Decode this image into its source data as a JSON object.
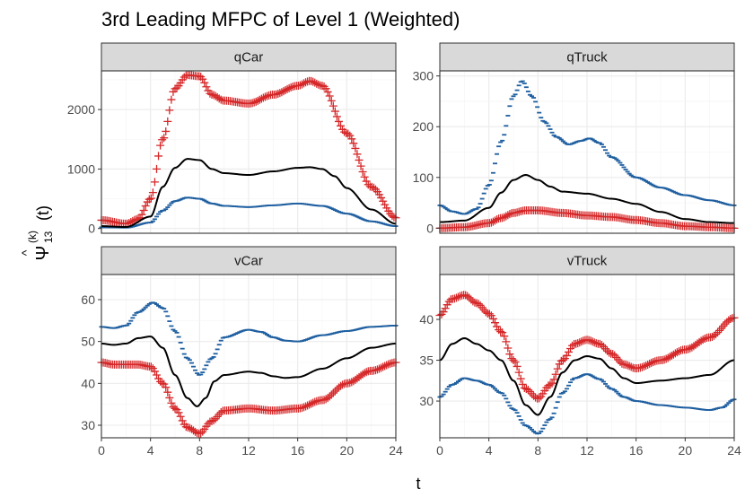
{
  "chart_data": {
    "type": "line",
    "title": "3rd Leading MFPC of Level 1 (Weighted)",
    "xlabel": "t",
    "ylabel": "Ψ̂_13^(k) (t)",
    "ylabel_parts": {
      "hat": "^",
      "psi": "Ψ",
      "sub": "13",
      "sup": "(k)",
      "arg": "(t)"
    },
    "xlim": [
      0,
      24
    ],
    "x_ticks": [
      "0",
      "4",
      "8",
      "12",
      "16",
      "20",
      "24"
    ],
    "series_styles": {
      "mean": {
        "color": "#000000",
        "marker": "line"
      },
      "plus": {
        "color": "#d62728",
        "marker": "+"
      },
      "minus": {
        "color": "#1f5fa0",
        "marker": "-"
      }
    },
    "panels": [
      {
        "name": "qCar",
        "ylim": [
          -80,
          2650
        ],
        "y_ticks": [
          0,
          1000,
          2000
        ],
        "y_tick_labels": [
          "0",
          "1000",
          "2000"
        ],
        "mean": [
          [
            0,
            40
          ],
          [
            2,
            25
          ],
          [
            4,
            200
          ],
          [
            5,
            700
          ],
          [
            6,
            1020
          ],
          [
            7,
            1170
          ],
          [
            8,
            1150
          ],
          [
            9,
            1000
          ],
          [
            10,
            930
          ],
          [
            12,
            900
          ],
          [
            14,
            960
          ],
          [
            16,
            1020
          ],
          [
            17,
            1030
          ],
          [
            18,
            1000
          ],
          [
            19,
            880
          ],
          [
            20,
            680
          ],
          [
            22,
            320
          ],
          [
            24,
            80
          ]
        ],
        "plus": [
          [
            0,
            140
          ],
          [
            2,
            80
          ],
          [
            3,
            160
          ],
          [
            4,
            500
          ],
          [
            5,
            1500
          ],
          [
            6,
            2350
          ],
          [
            7,
            2580
          ],
          [
            8,
            2560
          ],
          [
            9,
            2250
          ],
          [
            10,
            2150
          ],
          [
            12,
            2100
          ],
          [
            14,
            2250
          ],
          [
            16,
            2400
          ],
          [
            17,
            2480
          ],
          [
            18,
            2400
          ],
          [
            20,
            1600
          ],
          [
            22,
            700
          ],
          [
            24,
            180
          ]
        ],
        "minus": [
          [
            0,
            20
          ],
          [
            2,
            15
          ],
          [
            4,
            100
          ],
          [
            5,
            300
          ],
          [
            6,
            460
          ],
          [
            7,
            520
          ],
          [
            8,
            500
          ],
          [
            9,
            420
          ],
          [
            10,
            380
          ],
          [
            12,
            360
          ],
          [
            14,
            390
          ],
          [
            16,
            420
          ],
          [
            18,
            380
          ],
          [
            20,
            250
          ],
          [
            22,
            120
          ],
          [
            24,
            40
          ]
        ]
      },
      {
        "name": "qTruck",
        "ylim": [
          -10,
          310
        ],
        "y_ticks": [
          0,
          100,
          200,
          300
        ],
        "y_tick_labels": [
          "0",
          "100",
          "200",
          "300"
        ],
        "mean": [
          [
            0,
            12
          ],
          [
            2,
            15
          ],
          [
            4,
            40
          ],
          [
            5,
            70
          ],
          [
            6,
            95
          ],
          [
            7,
            105
          ],
          [
            8,
            95
          ],
          [
            9,
            82
          ],
          [
            10,
            72
          ],
          [
            12,
            68
          ],
          [
            14,
            58
          ],
          [
            16,
            48
          ],
          [
            18,
            32
          ],
          [
            20,
            18
          ],
          [
            22,
            12
          ],
          [
            24,
            10
          ]
        ],
        "plus": [
          [
            0,
            0
          ],
          [
            2,
            2
          ],
          [
            4,
            10
          ],
          [
            5,
            20
          ],
          [
            6,
            30
          ],
          [
            7,
            35
          ],
          [
            8,
            35
          ],
          [
            10,
            30
          ],
          [
            12,
            25
          ],
          [
            14,
            22
          ],
          [
            16,
            16
          ],
          [
            18,
            10
          ],
          [
            20,
            4
          ],
          [
            22,
            2
          ],
          [
            24,
            0
          ]
        ],
        "minus": [
          [
            0,
            45
          ],
          [
            1,
            33
          ],
          [
            2,
            28
          ],
          [
            3,
            38
          ],
          [
            4,
            85
          ],
          [
            5,
            170
          ],
          [
            6,
            260
          ],
          [
            6.7,
            290
          ],
          [
            7.5,
            260
          ],
          [
            8.5,
            210
          ],
          [
            9.5,
            180
          ],
          [
            10.5,
            165
          ],
          [
            11.5,
            172
          ],
          [
            12.2,
            177
          ],
          [
            13,
            168
          ],
          [
            14,
            140
          ],
          [
            16,
            100
          ],
          [
            18,
            80
          ],
          [
            20,
            65
          ],
          [
            22,
            55
          ],
          [
            24,
            45
          ]
        ]
      },
      {
        "name": "vCar",
        "ylim": [
          27,
          66
        ],
        "y_ticks": [
          30,
          40,
          50,
          60
        ],
        "y_tick_labels": [
          "30",
          "40",
          "50",
          "60"
        ],
        "mean": [
          [
            0,
            49.5
          ],
          [
            1,
            49.2
          ],
          [
            2,
            49.5
          ],
          [
            3,
            50.8
          ],
          [
            4,
            51.2
          ],
          [
            5,
            48.5
          ],
          [
            6,
            42
          ],
          [
            7,
            36.5
          ],
          [
            7.8,
            34.5
          ],
          [
            8.5,
            36.5
          ],
          [
            9.2,
            40.5
          ],
          [
            10,
            42
          ],
          [
            12,
            42.8
          ],
          [
            13,
            42.5
          ],
          [
            14,
            41.7
          ],
          [
            15,
            41.3
          ],
          [
            16,
            41.5
          ],
          [
            18,
            43.5
          ],
          [
            20,
            46
          ],
          [
            22,
            48.5
          ],
          [
            24,
            49.5
          ]
        ],
        "plus": [
          [
            0,
            45
          ],
          [
            1,
            44.5
          ],
          [
            3,
            44.5
          ],
          [
            4,
            44
          ],
          [
            5,
            40
          ],
          [
            6,
            34
          ],
          [
            7,
            29.5
          ],
          [
            8,
            28
          ],
          [
            9,
            31
          ],
          [
            10,
            33.5
          ],
          [
            12,
            34
          ],
          [
            14,
            33.5
          ],
          [
            16,
            34
          ],
          [
            18,
            36
          ],
          [
            20,
            40
          ],
          [
            22,
            43
          ],
          [
            24,
            45
          ]
        ],
        "minus": [
          [
            0,
            53.5
          ],
          [
            1,
            53.2
          ],
          [
            2,
            53.8
          ],
          [
            3,
            57
          ],
          [
            4.2,
            59.3
          ],
          [
            5,
            58
          ],
          [
            6,
            52.5
          ],
          [
            7,
            46
          ],
          [
            8,
            42
          ],
          [
            9,
            46
          ],
          [
            10,
            51
          ],
          [
            12,
            52.8
          ],
          [
            13,
            52.3
          ],
          [
            14,
            51
          ],
          [
            15,
            50.2
          ],
          [
            16,
            50
          ],
          [
            18,
            51.5
          ],
          [
            20,
            52.5
          ],
          [
            22,
            53.5
          ],
          [
            24,
            53.8
          ]
        ]
      },
      {
        "name": "vTruck",
        "ylim": [
          25.5,
          45.5
        ],
        "y_ticks": [
          30,
          35,
          40
        ],
        "y_tick_labels": [
          "30",
          "35",
          "40"
        ],
        "mean": [
          [
            0,
            35
          ],
          [
            1,
            37
          ],
          [
            2,
            37.7
          ],
          [
            3,
            37
          ],
          [
            4,
            36.2
          ],
          [
            5,
            35
          ],
          [
            6,
            32.5
          ],
          [
            7,
            29.5
          ],
          [
            8,
            28.3
          ],
          [
            9,
            30.5
          ],
          [
            10,
            33.5
          ],
          [
            11,
            35
          ],
          [
            12,
            35.5
          ],
          [
            13,
            35.2
          ],
          [
            14,
            34
          ],
          [
            15,
            32.8
          ],
          [
            16,
            32.2
          ],
          [
            18,
            32.5
          ],
          [
            20,
            32.8
          ],
          [
            22,
            33.2
          ],
          [
            24,
            35
          ]
        ],
        "plus": [
          [
            0,
            40.5
          ],
          [
            1,
            42.5
          ],
          [
            2,
            43
          ],
          [
            3,
            42
          ],
          [
            4,
            40.7
          ],
          [
            5,
            38.5
          ],
          [
            6,
            35
          ],
          [
            7,
            31.5
          ],
          [
            8,
            30.3
          ],
          [
            9,
            32
          ],
          [
            10,
            35
          ],
          [
            11,
            37
          ],
          [
            12,
            37.5
          ],
          [
            13,
            37
          ],
          [
            14,
            35.8
          ],
          [
            15,
            34.5
          ],
          [
            16,
            34
          ],
          [
            18,
            35
          ],
          [
            20,
            36.3
          ],
          [
            22,
            37.8
          ],
          [
            24,
            40.2
          ]
        ],
        "minus": [
          [
            0,
            30.5
          ],
          [
            1,
            32
          ],
          [
            2,
            32.8
          ],
          [
            3,
            32.5
          ],
          [
            4,
            32
          ],
          [
            5,
            31
          ],
          [
            6,
            29
          ],
          [
            7,
            27
          ],
          [
            8,
            26
          ],
          [
            9,
            27.8
          ],
          [
            10,
            31
          ],
          [
            11,
            32.8
          ],
          [
            12,
            33.3
          ],
          [
            13,
            32.7
          ],
          [
            14,
            31.5
          ],
          [
            15,
            30.5
          ],
          [
            16,
            30
          ],
          [
            18,
            29.5
          ],
          [
            20,
            29.2
          ],
          [
            22,
            28.9
          ],
          [
            23,
            29.2
          ],
          [
            24,
            30.2
          ]
        ]
      }
    ]
  }
}
